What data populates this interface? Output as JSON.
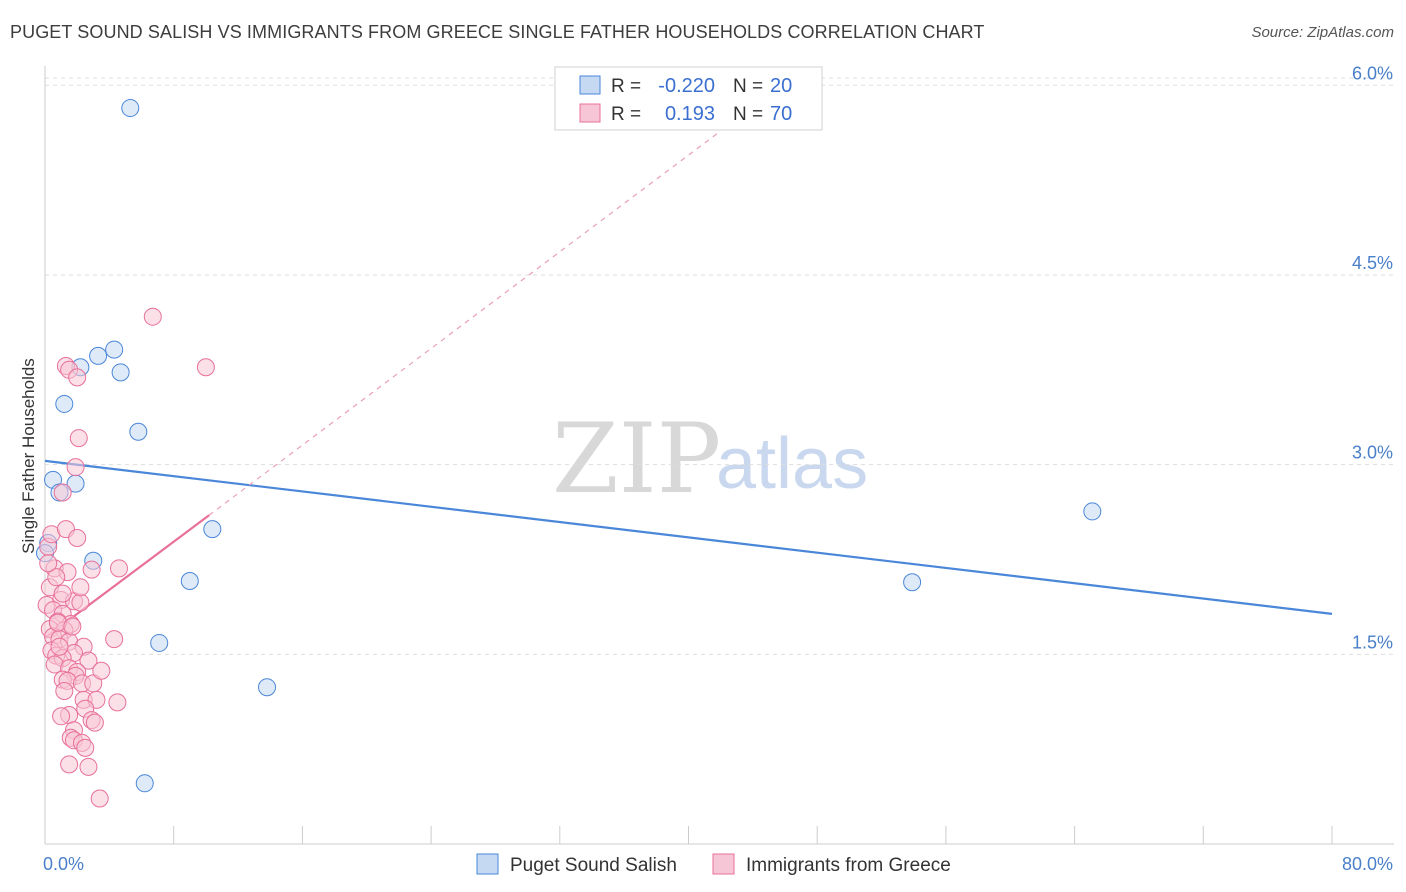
{
  "header": {
    "title": "PUGET SOUND SALISH VS IMMIGRANTS FROM GREECE SINGLE FATHER HOUSEHOLDS CORRELATION CHART",
    "source": "Source: ZipAtlas.com"
  },
  "watermark": {
    "zip": "ZIP",
    "atlas": "atlas"
  },
  "colors": {
    "blue": "#4a87d9",
    "blue_fill": "#c5d9f3",
    "pink": "#e8709a",
    "pink_fill": "#f7c6d6",
    "grid": "#dddddd",
    "tick_text": "#4a7fc9"
  },
  "legend": {
    "rows": [
      {
        "r_label": "R =",
        "r_value": "-0.220",
        "n_label": "N =",
        "n_value": "20"
      },
      {
        "r_label": "R =",
        "r_value": "0.193",
        "n_label": "N =",
        "n_value": "70"
      }
    ]
  },
  "chart_data": {
    "type": "scatter",
    "title": "PUGET SOUND SALISH VS IMMIGRANTS FROM GREECE SINGLE FATHER HOUSEHOLDS CORRELATION CHART",
    "xlabel": "",
    "ylabel": "Single Father Households",
    "xlim": [
      0,
      80
    ],
    "ylim": [
      0,
      6.2
    ],
    "x_tick_labels": {
      "min": "0.0%",
      "max": "80.0%"
    },
    "y_ticks": [
      {
        "value": 1.5,
        "label": "1.5%"
      },
      {
        "value": 3.0,
        "label": "3.0%"
      },
      {
        "value": 4.5,
        "label": "4.5%"
      },
      {
        "value": 6.0,
        "label": "6.0%"
      }
    ],
    "grid": true,
    "series": [
      {
        "name": "Puget Sound Salish",
        "color": "blue",
        "r": -0.22,
        "n": 20,
        "trend": {
          "x": [
            0,
            80
          ],
          "y": [
            3.03,
            1.82
          ]
        },
        "points": [
          [
            5.3,
            5.82
          ],
          [
            0.5,
            2.88
          ],
          [
            0.9,
            2.78
          ],
          [
            1.9,
            2.85
          ],
          [
            1.2,
            3.48
          ],
          [
            3.3,
            3.86
          ],
          [
            4.7,
            3.73
          ],
          [
            4.3,
            3.91
          ],
          [
            2.2,
            3.77
          ],
          [
            5.8,
            3.26
          ],
          [
            3.0,
            2.24
          ],
          [
            10.4,
            2.49
          ],
          [
            9.0,
            2.08
          ],
          [
            7.1,
            1.59
          ],
          [
            13.8,
            1.24
          ],
          [
            6.2,
            0.48
          ],
          [
            0.2,
            2.38
          ],
          [
            53.9,
            2.07
          ],
          [
            65.1,
            2.63
          ],
          [
            0.0,
            2.3
          ]
        ]
      },
      {
        "name": "Immigrants from Greece",
        "color": "pink",
        "r": 0.193,
        "n": 70,
        "trend": {
          "x": [
            0,
            10.2
          ],
          "y": [
            1.63,
            2.6
          ]
        },
        "trend_dashed": {
          "x": [
            10.2,
            41.8
          ],
          "y": [
            2.6,
            5.62
          ]
        },
        "points": [
          [
            0.2,
            2.35
          ],
          [
            0.4,
            2.45
          ],
          [
            1.3,
            2.49
          ],
          [
            0.6,
            2.18
          ],
          [
            1.4,
            2.15
          ],
          [
            2.0,
            2.42
          ],
          [
            2.9,
            2.17
          ],
          [
            4.6,
            2.18
          ],
          [
            0.3,
            2.03
          ],
          [
            0.7,
            2.11
          ],
          [
            1.0,
            1.93
          ],
          [
            1.8,
            1.92
          ],
          [
            2.2,
            1.91
          ],
          [
            0.1,
            1.89
          ],
          [
            0.5,
            1.85
          ],
          [
            1.1,
            1.82
          ],
          [
            0.8,
            1.76
          ],
          [
            1.6,
            1.74
          ],
          [
            0.3,
            1.7
          ],
          [
            1.2,
            1.69
          ],
          [
            0.5,
            1.64
          ],
          [
            0.9,
            1.62
          ],
          [
            1.5,
            1.6
          ],
          [
            2.4,
            1.56
          ],
          [
            0.4,
            1.53
          ],
          [
            1.8,
            1.51
          ],
          [
            0.7,
            1.49
          ],
          [
            1.1,
            1.47
          ],
          [
            2.7,
            1.45
          ],
          [
            0.6,
            1.42
          ],
          [
            1.5,
            1.39
          ],
          [
            2.0,
            1.36
          ],
          [
            1.9,
            1.33
          ],
          [
            1.1,
            1.3
          ],
          [
            1.4,
            1.29
          ],
          [
            2.3,
            1.27
          ],
          [
            3.0,
            1.27
          ],
          [
            1.2,
            1.21
          ],
          [
            2.4,
            1.14
          ],
          [
            3.2,
            1.14
          ],
          [
            4.5,
            1.12
          ],
          [
            1.5,
            1.02
          ],
          [
            2.5,
            1.07
          ],
          [
            1.0,
            1.01
          ],
          [
            2.9,
            0.98
          ],
          [
            3.1,
            0.96
          ],
          [
            1.8,
            0.9
          ],
          [
            1.6,
            0.84
          ],
          [
            1.8,
            0.82
          ],
          [
            2.3,
            0.8
          ],
          [
            2.5,
            0.76
          ],
          [
            1.5,
            0.63
          ],
          [
            2.7,
            0.61
          ],
          [
            3.4,
            0.36
          ],
          [
            4.3,
            1.62
          ],
          [
            1.3,
            3.78
          ],
          [
            1.5,
            3.75
          ],
          [
            2.0,
            3.69
          ],
          [
            2.1,
            3.21
          ],
          [
            1.9,
            2.98
          ],
          [
            1.1,
            2.78
          ],
          [
            6.7,
            4.17
          ],
          [
            10.0,
            3.77
          ],
          [
            0.8,
            1.75
          ],
          [
            1.7,
            1.72
          ],
          [
            0.2,
            2.22
          ],
          [
            1.1,
            1.98
          ],
          [
            2.2,
            2.03
          ],
          [
            0.9,
            1.56
          ],
          [
            3.5,
            1.37
          ]
        ]
      }
    ],
    "legend_position": "bottom-center"
  }
}
